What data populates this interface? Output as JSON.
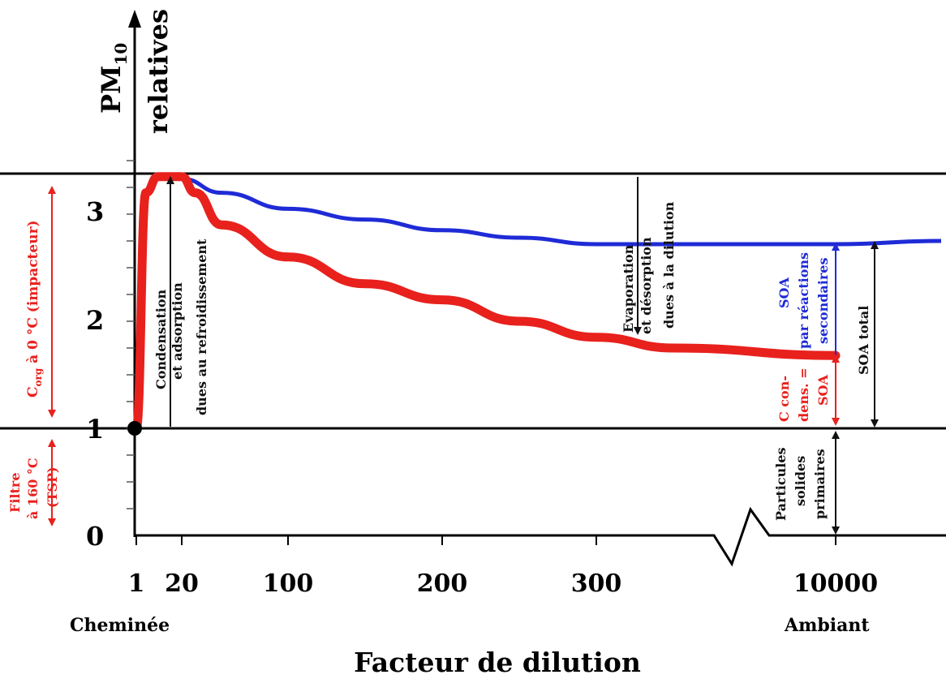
{
  "chart_data": {
    "type": "line",
    "ylabel_main": "PM",
    "ylabel_sub": "10",
    "ylabel_second": "relatives",
    "xlabel": "Facteur de dilution",
    "x_start_label": "Cheminée",
    "x_end_label": "Ambiant",
    "x_ticks": [
      "1",
      "20",
      "100",
      "200",
      "300",
      "10000"
    ],
    "y_ticks": [
      "0",
      "1",
      "2",
      "3"
    ],
    "ylim": [
      0,
      3.6
    ],
    "axis_break_between": [
      "300",
      "10000"
    ],
    "colors": {
      "organic": "#e8211d",
      "total": "#1f2bd6",
      "annotation_black": "#111111"
    },
    "series": [
      {
        "name": "",
        "color": "#e8211d",
        "x": [
          1,
          5,
          10,
          20,
          30,
          50,
          100,
          150,
          200,
          250,
          300,
          350,
          10000
        ],
        "y": [
          1.0,
          3.2,
          3.35,
          3.35,
          3.2,
          2.9,
          2.6,
          2.35,
          2.2,
          2.0,
          1.85,
          1.75,
          1.68
        ]
      },
      {
        "name": "",
        "color": "#1f2bd6",
        "x": [
          20,
          50,
          100,
          150,
          200,
          250,
          300,
          10000,
          12000
        ],
        "y": [
          3.33,
          3.2,
          3.05,
          2.95,
          2.85,
          2.78,
          2.72,
          2.72,
          2.75
        ]
      }
    ],
    "reference_lines": [
      1.0,
      3.35
    ],
    "annotations": {
      "condensation": [
        "Condensation",
        "et adsorption",
        "dues au refroidissement"
      ],
      "evaporation": [
        "Evaporation",
        "et désorption",
        "dues à la dilution"
      ],
      "soa_secondary": [
        "SOA",
        "par réactions",
        "secondaires"
      ],
      "soa_condensed": [
        "C con-",
        "dens. =",
        "SOA"
      ],
      "soa_total": "SOA total",
      "primary": [
        "Particules",
        "solides",
        "primaires"
      ],
      "filter": [
        "Filtre",
        "à 160 °C",
        "(TSP)"
      ],
      "corg_main": "C",
      "corg_sub": "org",
      "corg_rest": " à 0 °C (impacteur)"
    }
  }
}
